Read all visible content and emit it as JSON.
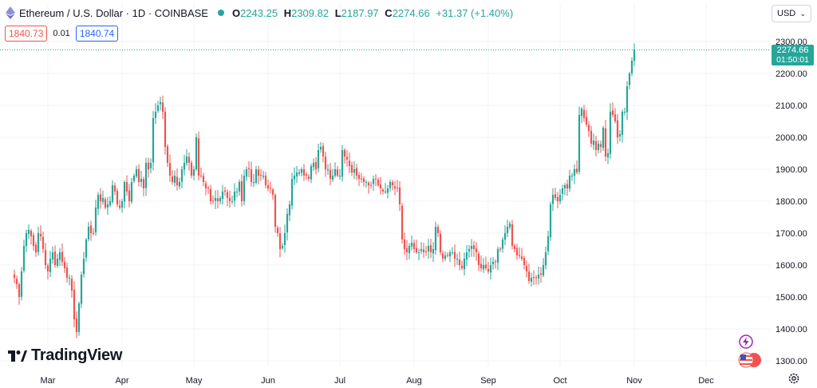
{
  "header": {
    "symbol_title": "Ethereum / U.S. Dollar · 1D · COINBASE",
    "ohlc": {
      "open_key": "O",
      "open": "2243.25",
      "high_key": "H",
      "high": "2309.82",
      "low_key": "L",
      "low": "2187.97",
      "close_key": "C",
      "close": "2274.66",
      "change": "+31.37 (+1.40%)"
    }
  },
  "order": {
    "sell_price": "1840.73",
    "spread": "0.01",
    "buy_price": "1840.74"
  },
  "currency_button": {
    "label": "USD"
  },
  "last_price_label": {
    "price": "2274.66",
    "countdown": "01:50:01"
  },
  "logo": {
    "text": "TradingView"
  },
  "colors": {
    "up": "#26a69a",
    "down": "#ef5350",
    "grid": "#f0f3fa",
    "axis_text": "#131722"
  },
  "icons": [
    "ethereum-icon",
    "status-dot",
    "lightning-icon",
    "us-flag-icon",
    "gear-icon",
    "chevron-down-icon"
  ],
  "chart_data": {
    "type": "candlestick",
    "title": "Ethereum / U.S. Dollar · 1D · COINBASE",
    "ylim": [
      1260,
      2320
    ],
    "y_ticks": [
      1300,
      1400,
      1500,
      1600,
      1700,
      1800,
      1900,
      2000,
      2100,
      2200,
      2300
    ],
    "y_tick_labels": [
      "1300.00",
      "1400.00",
      "1500.00",
      "1600.00",
      "1700.00",
      "1800.00",
      "1900.00",
      "2000.00",
      "2100.00",
      "2200.00",
      "2300.00"
    ],
    "x_ticks": [
      "Mar",
      "Apr",
      "May",
      "Jun",
      "Jul",
      "Aug",
      "Sep",
      "Oct",
      "Nov",
      "Dec"
    ],
    "x_tick_days": [
      0,
      31,
      61,
      92,
      122,
      153,
      184,
      214,
      245,
      275
    ],
    "first_day_offset": -14,
    "grid": true,
    "last_price": 2274.66,
    "close_series": [
      1560,
      1540,
      1500,
      1580,
      1660,
      1700,
      1710,
      1690,
      1660,
      1640,
      1700,
      1690,
      1650,
      1600,
      1580,
      1620,
      1640,
      1600,
      1620,
      1640,
      1610,
      1590,
      1560,
      1560,
      1520,
      1430,
      1390,
      1480,
      1570,
      1620,
      1680,
      1720,
      1700,
      1700,
      1780,
      1820,
      1800,
      1810,
      1780,
      1790,
      1800,
      1850,
      1830,
      1790,
      1780,
      1800,
      1860,
      1830,
      1800,
      1860,
      1880,
      1900,
      1860,
      1870,
      1840,
      1920,
      1900,
      1920,
      2060,
      2080,
      2100,
      2110,
      2080,
      1970,
      1920,
      1880,
      1860,
      1880,
      1850,
      1860,
      1900,
      1920,
      1940,
      1920,
      1880,
      1900,
      2000,
      1880,
      1880,
      1860,
      1840,
      1840,
      1800,
      1800,
      1810,
      1800,
      1810,
      1830,
      1830,
      1810,
      1800,
      1800,
      1830,
      1830,
      1860,
      1800,
      1880,
      1900,
      1900,
      1860,
      1860,
      1900,
      1880,
      1880,
      1880,
      1850,
      1840,
      1840,
      1820,
      1720,
      1700,
      1650,
      1660,
      1700,
      1760,
      1790,
      1870,
      1880,
      1890,
      1890,
      1900,
      1880,
      1880,
      1870,
      1910,
      1920,
      1900,
      1960,
      1970,
      1940,
      1900,
      1900,
      1870,
      1880,
      1900,
      1880,
      1880,
      1960,
      1940,
      1930,
      1910,
      1890,
      1900,
      1880,
      1870,
      1870,
      1860,
      1860,
      1850,
      1850,
      1870,
      1870,
      1850,
      1840,
      1830,
      1830,
      1840,
      1860,
      1850,
      1840,
      1840,
      1790,
      1680,
      1650,
      1640,
      1660,
      1670,
      1650,
      1640,
      1640,
      1650,
      1640,
      1640,
      1660,
      1640,
      1650,
      1720,
      1700,
      1640,
      1620,
      1630,
      1630,
      1640,
      1640,
      1620,
      1620,
      1600,
      1590,
      1620,
      1640,
      1650,
      1660,
      1650,
      1640,
      1600,
      1590,
      1600,
      1590,
      1580,
      1600,
      1610,
      1610,
      1650,
      1650,
      1680,
      1700,
      1720,
      1730,
      1660,
      1650,
      1630,
      1630,
      1620,
      1600,
      1580,
      1550,
      1560,
      1560,
      1560,
      1570,
      1570,
      1600,
      1640,
      1690,
      1790,
      1820,
      1810,
      1800,
      1820,
      1840,
      1850,
      1840,
      1880,
      1880,
      1900,
      1890,
      2070,
      2090,
      2060,
      2040,
      2020,
      1980,
      1990,
      1960,
      1980,
      1970,
      2030,
      1940,
      1950,
      2080,
      2070,
      2050,
      2000,
      2010,
      2080,
      2080,
      2160,
      2200,
      2240,
      2274.66
    ]
  }
}
